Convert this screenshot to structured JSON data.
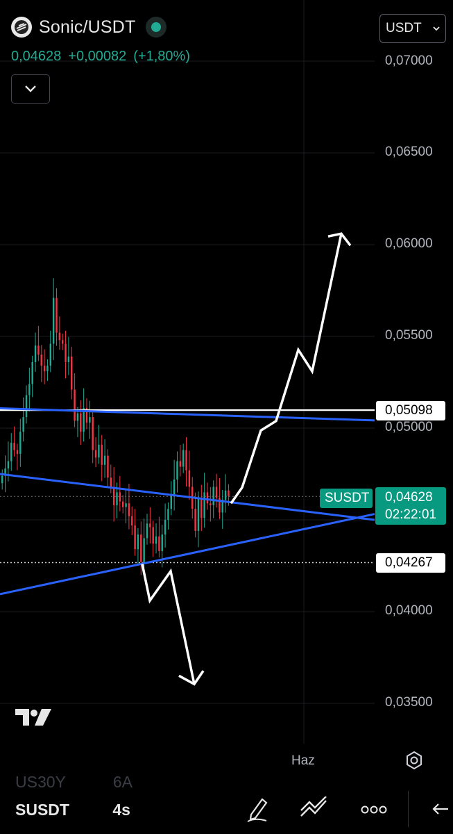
{
  "header": {
    "pair": "Sonic/USDT",
    "price": "0,04628",
    "change_abs": "+0,00082",
    "change_pct": "(+1,80%)",
    "currency_selector": "USDT"
  },
  "colors": {
    "background": "#000000",
    "up": "#22ab94",
    "down": "#f23645",
    "trendline": "#2962ff",
    "tag": "#089981"
  },
  "icons": [
    "sonic-logo-icon",
    "status-dot-icon",
    "chevron-down-icon",
    "tradingview-logo-icon",
    "settings-icon",
    "pencil-icon",
    "trendline-tool-icon",
    "more-icon",
    "undo-icon"
  ],
  "chart_data": {
    "type": "candlestick",
    "y_axis_ticks": [
      "0,07000",
      "0,06500",
      "0,06000",
      "0,05500",
      "0,05000",
      "0,04000",
      "0,03500"
    ],
    "x_axis_ticks": [
      "Haz"
    ],
    "ylim": [
      0.0325,
      0.0718
    ],
    "grid": true,
    "price_tags": {
      "resistance": "0,05098",
      "symbol": "SUSDT",
      "last": "0,04628",
      "countdown": "02:22:01",
      "support": "0,04267"
    },
    "levels": {
      "resistance": 0.05098,
      "last": 0.04628,
      "support": 0.04267
    },
    "lines": [
      {
        "name": "horizontal-resistance",
        "y1": 0.05098,
        "y2": 0.05098
      },
      {
        "name": "upper-blue-line",
        "y1": 0.05108,
        "y2": 0.05042
      },
      {
        "name": "descending-trendline",
        "y1": 0.0475,
        "y2": 0.045
      },
      {
        "name": "ascending-trendline",
        "y1": 0.04095,
        "y2": 0.04532
      }
    ],
    "closes": [
      0.0474,
      0.0478,
      0.0482,
      0.0492,
      0.0488,
      0.0486,
      0.0498,
      0.0506,
      0.0518,
      0.0524,
      0.0536,
      0.0545,
      0.054,
      0.0534,
      0.0531,
      0.0534,
      0.0546,
      0.0571,
      0.0552,
      0.0548,
      0.0546,
      0.0536,
      0.0539,
      0.0521,
      0.0504,
      0.0508,
      0.0498,
      0.0511,
      0.0503,
      0.0506,
      0.0488,
      0.0484,
      0.0491,
      0.048,
      0.0485,
      0.0473,
      0.0468,
      0.0458,
      0.0465,
      0.046,
      0.0457,
      0.0459,
      0.0452,
      0.0447,
      0.0434,
      0.0442,
      0.0427,
      0.044,
      0.0448,
      0.0446,
      0.0437,
      0.0441,
      0.0433,
      0.0442,
      0.045,
      0.0456,
      0.0464,
      0.0472,
      0.0482,
      0.0479,
      0.0488,
      0.0477,
      0.0468,
      0.0456,
      0.0444,
      0.0462,
      0.0451,
      0.0465,
      0.0459,
      0.0458,
      0.0468,
      0.0462,
      0.0454,
      0.0461,
      0.0466,
      0.0463
    ],
    "projections": [
      {
        "name": "bullish-projection",
        "points": [
          [
            0.0459,
            0.04628
          ],
          [
            0.04676,
            0.04628
          ],
          [
            0.04987,
            0.0503
          ],
          [
            0.05039,
            0.0503
          ],
          [
            0.05427,
            0.055
          ],
          [
            0.0531,
            0.0556
          ],
          [
            0.0606,
            0.062
          ]
        ]
      },
      {
        "name": "bearish-projection",
        "points": [
          [
            0.0426,
            0.04228
          ],
          [
            0.0406,
            0.04201
          ],
          [
            0.0422,
            0.04243
          ],
          [
            0.03605,
            0.04353
          ]
        ]
      }
    ]
  },
  "bottom_bar": {
    "ghost_symbol": "US30Y",
    "ghost_value": "6A",
    "symbol": "SUSDT",
    "timeframe": "4s"
  }
}
